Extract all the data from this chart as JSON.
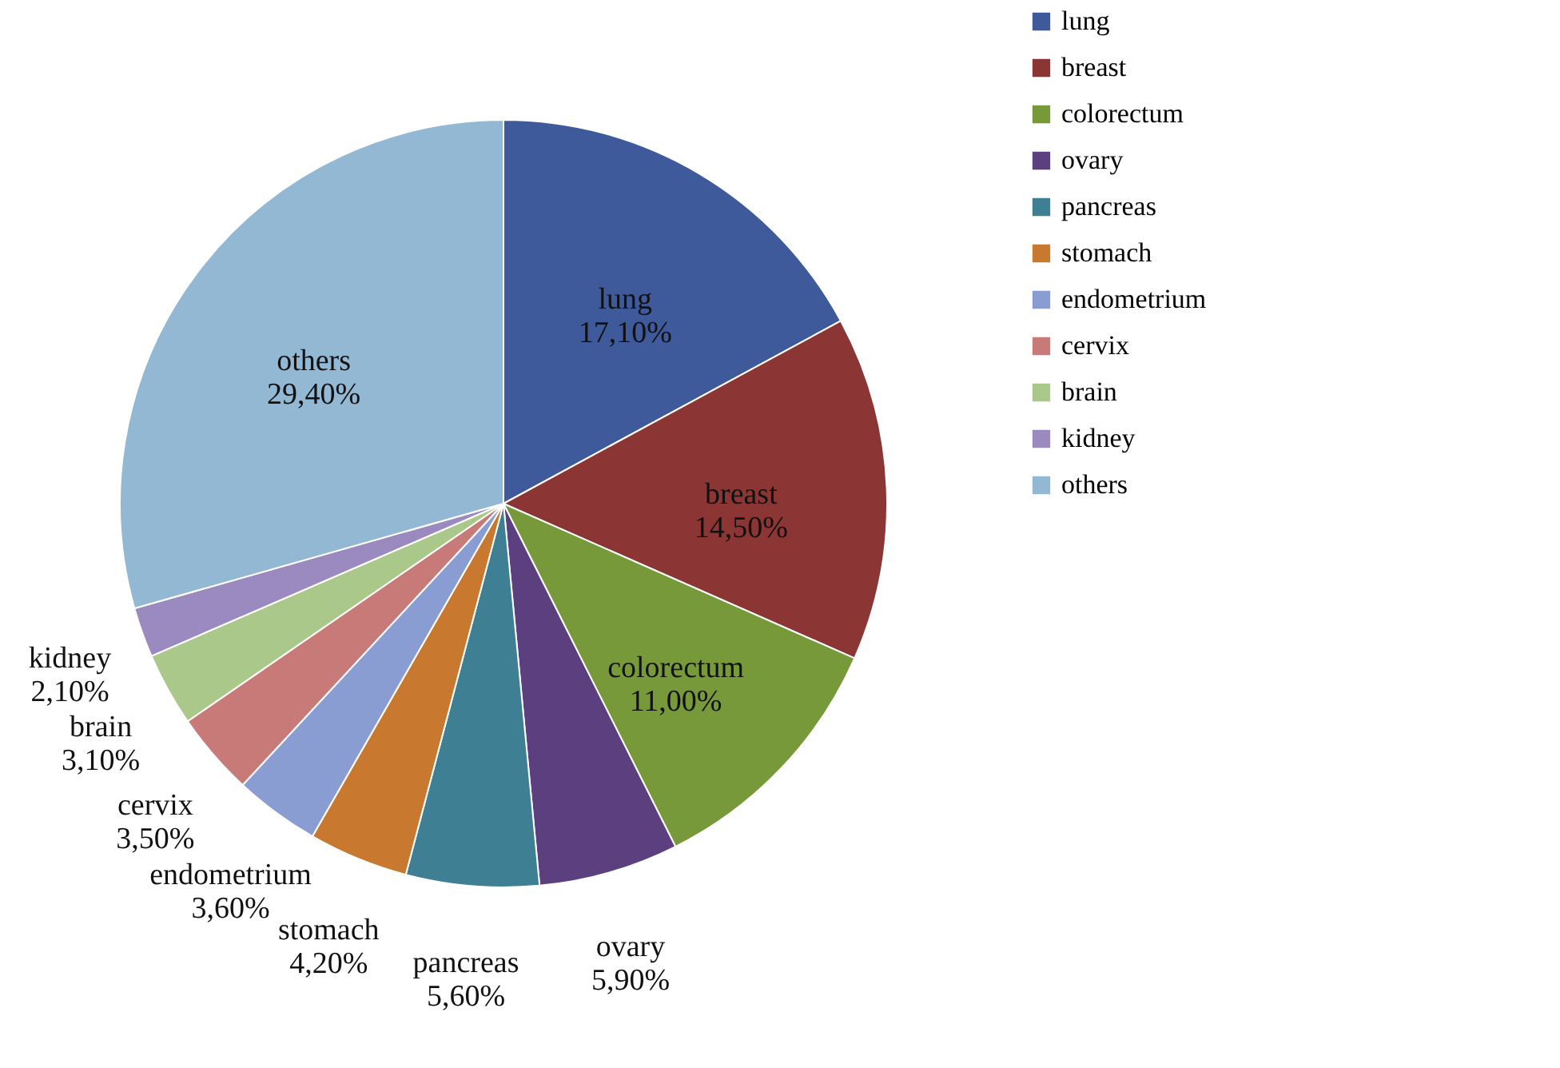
{
  "chart_data": {
    "type": "pie",
    "categories": [
      "lung",
      "breast",
      "colorectum",
      "ovary",
      "pancreas",
      "stomach",
      "endometrium",
      "cervix",
      "brain",
      "kidney",
      "others"
    ],
    "values": [
      17.1,
      14.5,
      11.0,
      5.9,
      5.6,
      4.2,
      3.6,
      3.5,
      3.1,
      2.1,
      29.4
    ],
    "value_labels": [
      "17,10%",
      "14,50%",
      "11,00%",
      "5,90%",
      "5,60%",
      "4,20%",
      "3,60%",
      "3,50%",
      "3,10%",
      "2,10%",
      "29,40%"
    ],
    "colors": [
      "#3f5a9a",
      "#8b3535",
      "#78993a",
      "#5c3f7e",
      "#3e7f93",
      "#c9782f",
      "#8a9dd3",
      "#c87a78",
      "#a9c88a",
      "#9a8ac0",
      "#93b8d4"
    ],
    "legend": "right"
  }
}
